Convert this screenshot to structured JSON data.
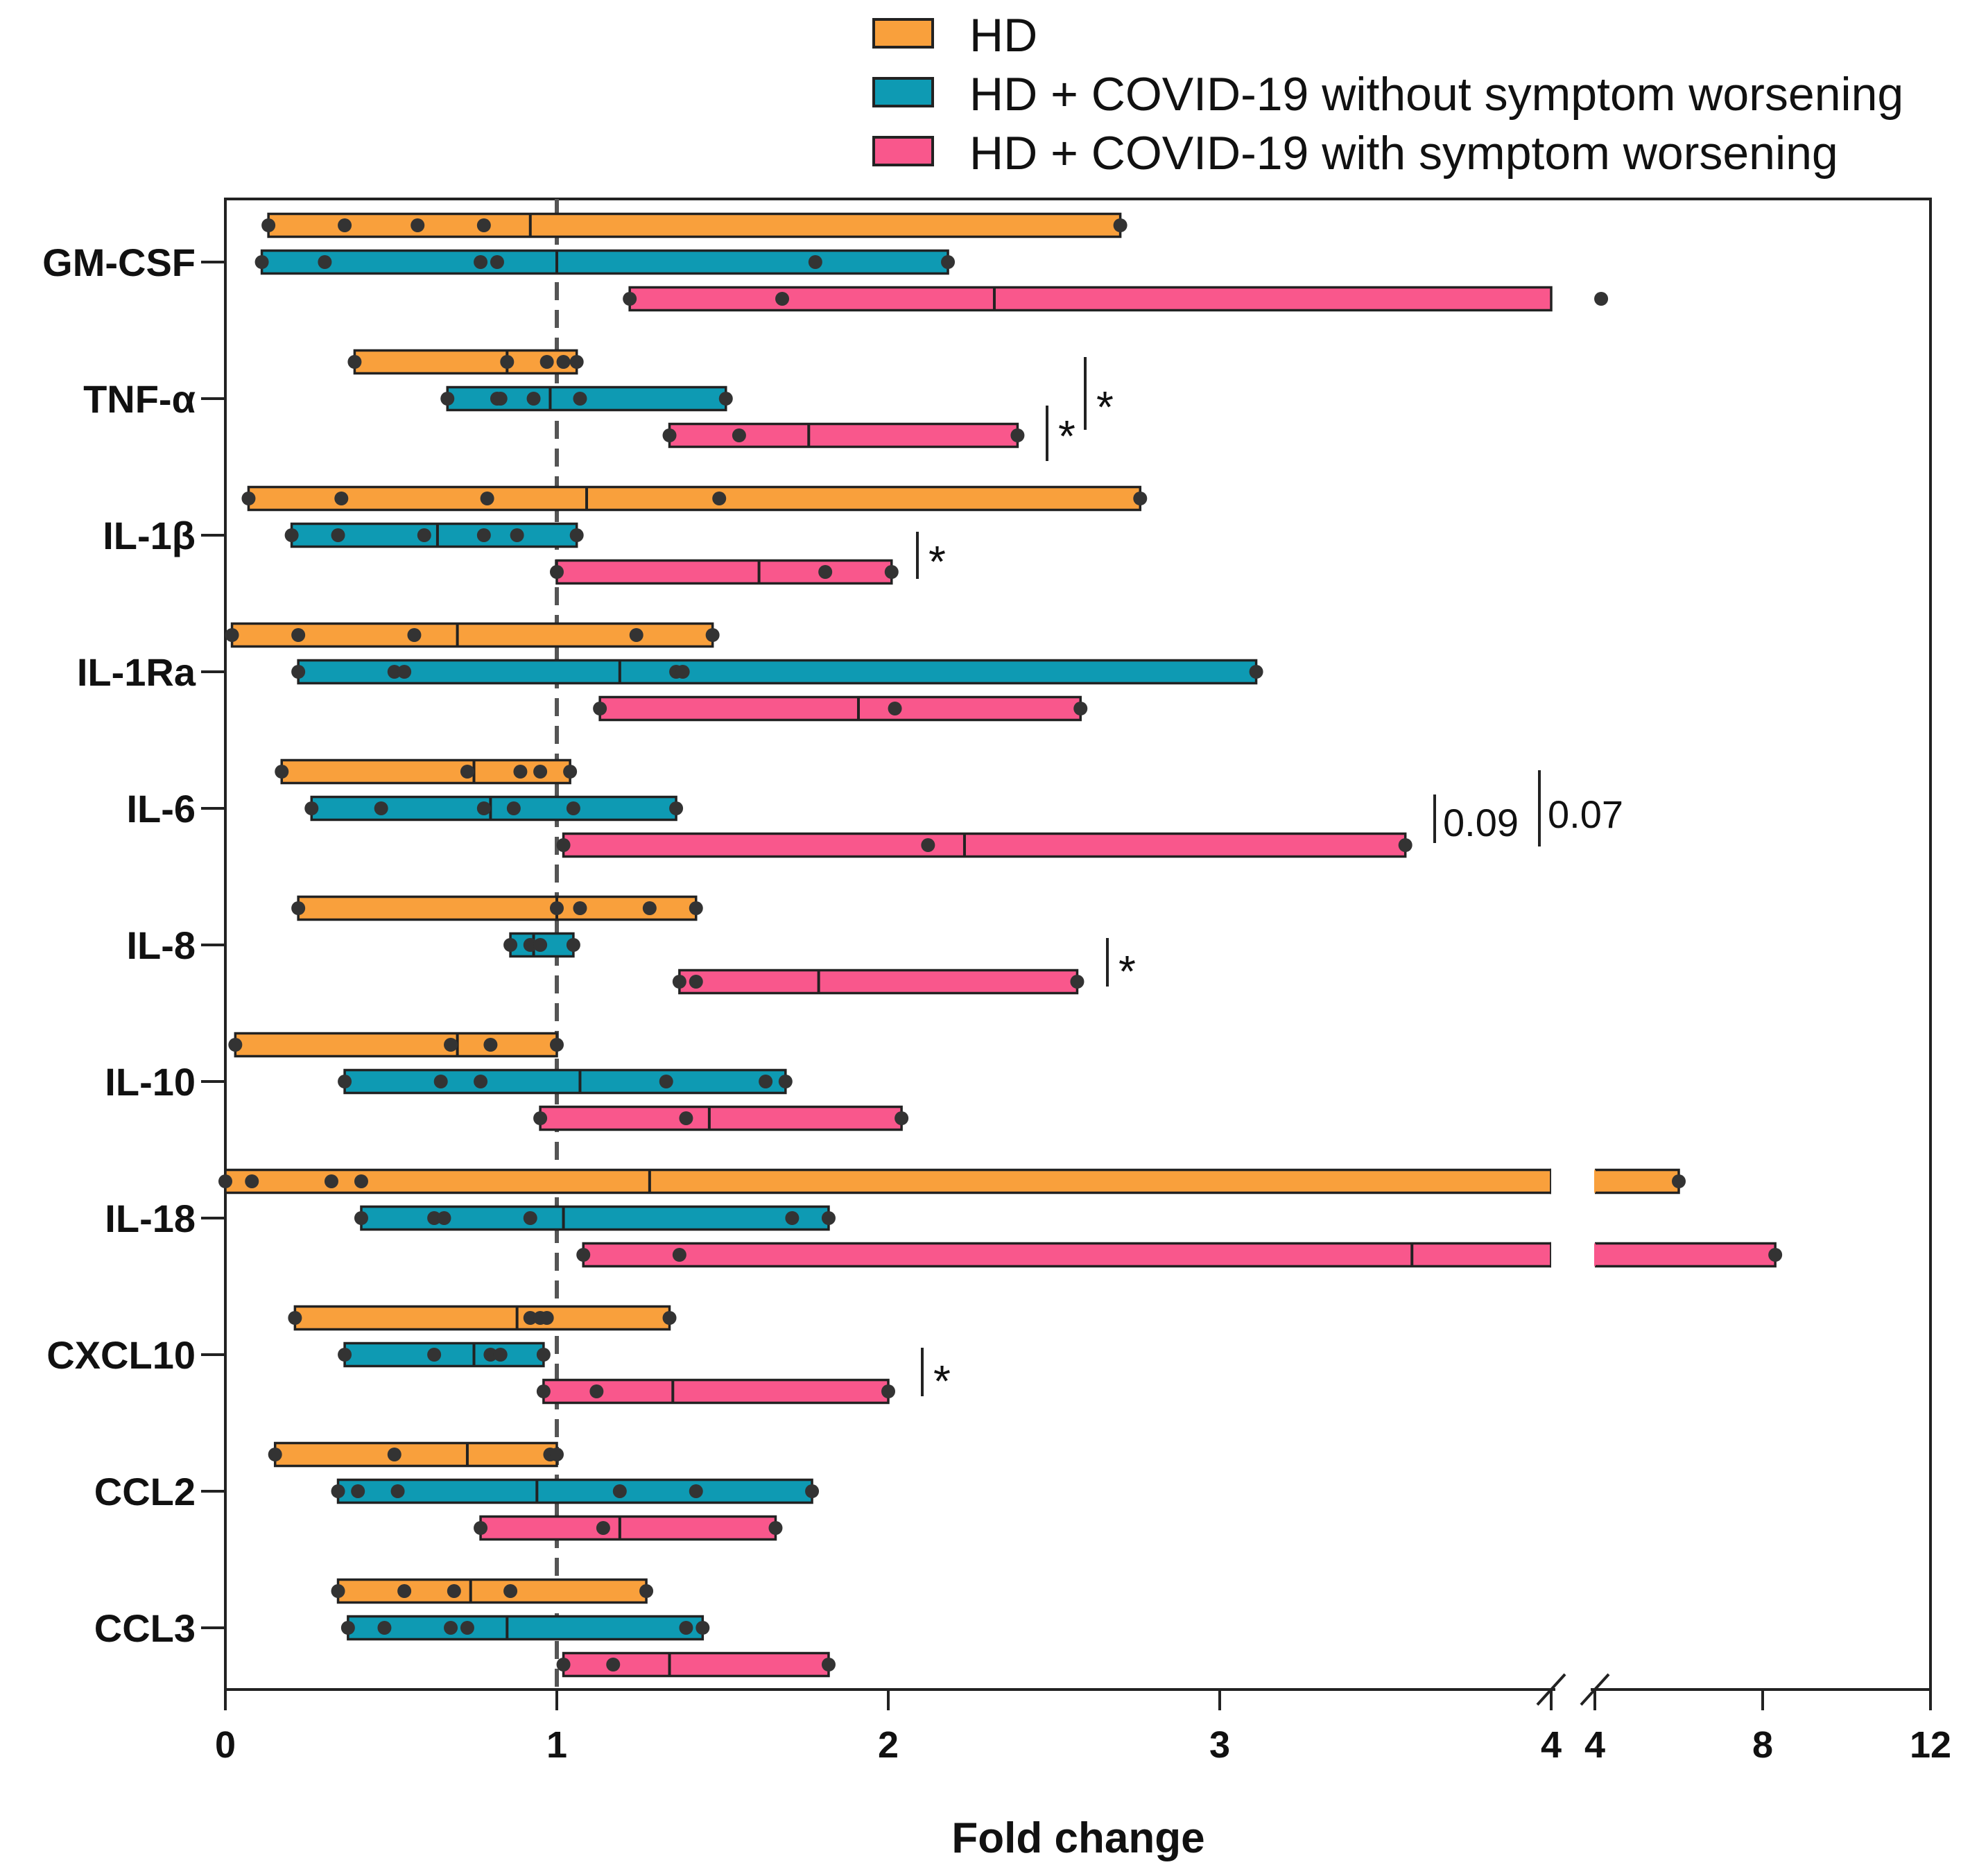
{
  "chart_data": {
    "type": "floating-bar (min–max range with median line and individual points)",
    "xlabel": "Fold change",
    "ylabel": "",
    "x_axis_segments": [
      {
        "range": [
          0,
          4
        ],
        "ticks": [
          0,
          1,
          2,
          3,
          4
        ],
        "tick_labels": [
          "0",
          "1",
          "2",
          "3",
          "4"
        ]
      },
      {
        "range": [
          4,
          12
        ],
        "ticks": [
          4,
          8,
          12
        ],
        "tick_labels": [
          "4",
          "8",
          "12"
        ]
      }
    ],
    "axis_break": "between 4 and 4 (split axis)",
    "reference_line": {
      "x": 1,
      "style": "dashed"
    },
    "legend": [
      {
        "name": "HD",
        "color": "#F9A03C"
      },
      {
        "name": "HD + COVID-19 without symptom worsening",
        "color": "#0E9AB3"
      },
      {
        "name": "HD + COVID-19 with symptom worsening",
        "color": "#F9578C"
      }
    ],
    "legend_position": "top",
    "categories": [
      "GM-CSF",
      "TNF-α",
      "IL-1β",
      "IL-1Ra",
      "IL-6",
      "IL-8",
      "IL-10",
      "IL-18",
      "CXCL10",
      "CCL2",
      "CCL3"
    ],
    "series": [
      {
        "name": "HD",
        "color": "#F9A03C",
        "data": [
          {
            "min": 0.13,
            "median": 0.92,
            "max": 2.7,
            "points": [
              0.13,
              0.36,
              0.58,
              0.78,
              2.7
            ]
          },
          {
            "min": 0.39,
            "median": 0.85,
            "max": 1.06,
            "points": [
              0.39,
              0.85,
              0.97,
              1.02,
              1.06
            ]
          },
          {
            "min": 0.07,
            "median": 1.09,
            "max": 2.76,
            "points": [
              0.07,
              0.35,
              0.79,
              1.49,
              2.76
            ]
          },
          {
            "min": 0.02,
            "median": 0.7,
            "max": 1.47,
            "points": [
              0.02,
              0.22,
              0.57,
              1.24,
              1.47
            ]
          },
          {
            "min": 0.17,
            "median": 0.75,
            "max": 1.04,
            "points": [
              0.17,
              0.73,
              0.89,
              0.95,
              1.04
            ]
          },
          {
            "min": 0.22,
            "median": 1.0,
            "max": 1.42,
            "points": [
              0.22,
              1.0,
              1.07,
              1.28,
              1.42
            ]
          },
          {
            "min": 0.03,
            "median": 0.7,
            "max": 1.0,
            "points": [
              0.03,
              0.68,
              0.8,
              1.0
            ]
          },
          {
            "min": 0.0,
            "median": 1.28,
            "max": 6.0,
            "points": [
              0.0,
              0.08,
              0.32,
              0.41,
              6.0
            ]
          },
          {
            "min": 0.21,
            "median": 0.88,
            "max": 1.34,
            "points": [
              0.21,
              0.92,
              0.95,
              0.97,
              1.34
            ]
          },
          {
            "min": 0.15,
            "median": 0.73,
            "max": 1.0,
            "points": [
              0.15,
              0.51,
              0.98,
              1.0
            ]
          },
          {
            "min": 0.34,
            "median": 0.74,
            "max": 1.27,
            "points": [
              0.34,
              0.54,
              0.69,
              0.86,
              1.27
            ]
          }
        ]
      },
      {
        "name": "HD + COVID-19 without symptom worsening",
        "color": "#0E9AB3",
        "data": [
          {
            "min": 0.11,
            "median": 1.0,
            "max": 2.18,
            "points": [
              0.11,
              0.3,
              0.77,
              0.82,
              1.78,
              2.18
            ]
          },
          {
            "min": 0.67,
            "median": 0.98,
            "max": 1.51,
            "points": [
              0.67,
              0.82,
              0.83,
              0.93,
              1.07,
              1.51
            ]
          },
          {
            "min": 0.2,
            "median": 0.64,
            "max": 1.06,
            "points": [
              0.2,
              0.34,
              0.6,
              0.78,
              0.88,
              1.06
            ]
          },
          {
            "min": 0.22,
            "median": 1.19,
            "max": 3.11,
            "points": [
              0.22,
              0.51,
              0.54,
              1.36,
              1.38,
              3.11
            ]
          },
          {
            "min": 0.26,
            "median": 0.8,
            "max": 1.36,
            "points": [
              0.26,
              0.47,
              0.78,
              0.87,
              1.05,
              1.36
            ]
          },
          {
            "min": 0.86,
            "median": 0.93,
            "max": 1.05,
            "points": [
              0.86,
              0.92,
              0.95,
              1.05
            ]
          },
          {
            "min": 0.36,
            "median": 1.07,
            "max": 1.69,
            "points": [
              0.36,
              0.65,
              0.77,
              1.33,
              1.63,
              1.69
            ]
          },
          {
            "min": 0.41,
            "median": 1.02,
            "max": 1.82,
            "points": [
              0.41,
              0.63,
              0.66,
              0.92,
              1.71,
              1.82
            ]
          },
          {
            "min": 0.36,
            "median": 0.75,
            "max": 0.96,
            "points": [
              0.36,
              0.63,
              0.8,
              0.83,
              0.96
            ]
          },
          {
            "min": 0.34,
            "median": 0.94,
            "max": 1.77,
            "points": [
              0.34,
              0.4,
              0.52,
              1.19,
              1.42,
              1.77
            ]
          },
          {
            "min": 0.37,
            "median": 0.85,
            "max": 1.44,
            "points": [
              0.37,
              0.48,
              0.68,
              0.73,
              1.39,
              1.44
            ]
          }
        ]
      },
      {
        "name": "HD + COVID-19 with symptom worsening",
        "color": "#F9578C",
        "data": [
          {
            "min": 1.22,
            "median": 2.32,
            "max": 4.0,
            "points": [
              1.22,
              1.68,
              4.15
            ],
            "bar_truncated_at_break": true
          },
          {
            "min": 1.34,
            "median": 1.76,
            "max": 2.39,
            "points": [
              1.34,
              1.55,
              2.39
            ]
          },
          {
            "min": 1.0,
            "median": 1.61,
            "max": 2.01,
            "points": [
              1.0,
              1.81,
              2.01
            ]
          },
          {
            "min": 1.13,
            "median": 1.91,
            "max": 2.58,
            "points": [
              1.13,
              2.02,
              2.58
            ]
          },
          {
            "min": 1.02,
            "median": 2.23,
            "max": 3.56,
            "points": [
              1.02,
              2.12,
              3.56
            ]
          },
          {
            "min": 1.37,
            "median": 1.79,
            "max": 2.57,
            "points": [
              1.37,
              1.42,
              2.57
            ]
          },
          {
            "min": 0.95,
            "median": 1.46,
            "max": 2.04,
            "points": [
              0.95,
              1.39,
              2.04
            ]
          },
          {
            "min": 1.08,
            "median": 3.58,
            "max": 8.3,
            "points": [
              1.08,
              1.37,
              8.3
            ]
          },
          {
            "min": 0.96,
            "median": 1.35,
            "max": 2.0,
            "points": [
              0.96,
              1.12,
              2.0
            ]
          },
          {
            "min": 0.77,
            "median": 1.19,
            "max": 1.66,
            "points": [
              0.77,
              1.14,
              1.66
            ]
          },
          {
            "min": 1.02,
            "median": 1.34,
            "max": 1.82,
            "points": [
              1.02,
              1.17,
              1.82
            ]
          }
        ]
      }
    ],
    "annotations": [
      {
        "category": "TNF-α",
        "text": "*",
        "comparison": "with vs without symptom worsening"
      },
      {
        "category": "TNF-α",
        "text": "*",
        "comparison": "with symptom worsening vs HD"
      },
      {
        "category": "IL-1β",
        "text": "*",
        "comparison": "with symptom worsening"
      },
      {
        "category": "IL-6",
        "text": "0.09",
        "comparison": "with vs without symptom worsening"
      },
      {
        "category": "IL-6",
        "text": "0.07",
        "comparison": "with symptom worsening vs HD"
      },
      {
        "category": "IL-8",
        "text": "*",
        "comparison": "with symptom worsening"
      },
      {
        "category": "CXCL10",
        "text": "*",
        "comparison": "with symptom worsening"
      }
    ]
  }
}
